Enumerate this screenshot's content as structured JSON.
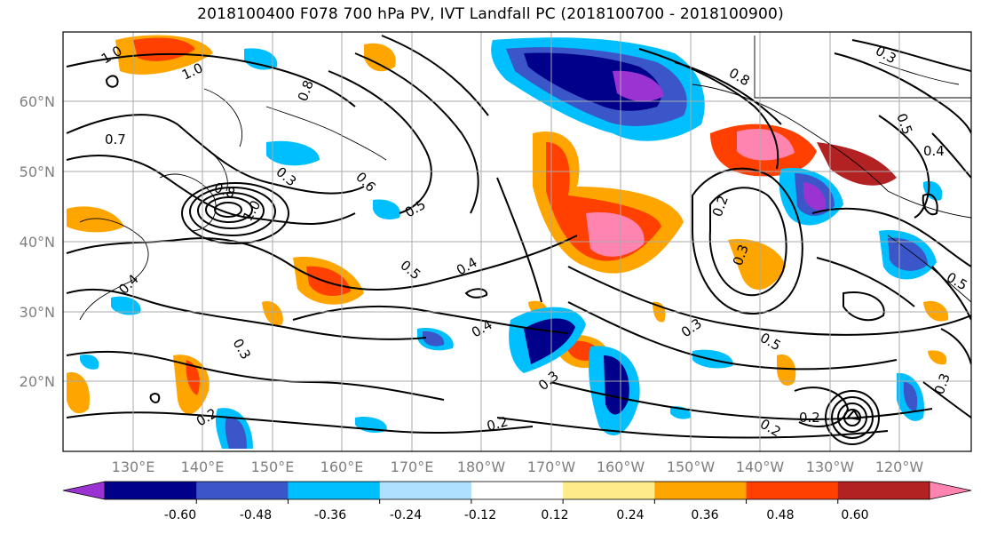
{
  "title": "2018100400 F078 700 hPa PV, IVT Landfall PC (2018100700 - 2018100900)",
  "lat_labels": [
    "60°N",
    "50°N",
    "40°N",
    "30°N",
    "20°N"
  ],
  "lon_labels": [
    "130°E",
    "140°E",
    "150°E",
    "160°E",
    "170°E",
    "180°W",
    "170°W",
    "160°W",
    "150°W",
    "140°W",
    "130°W",
    "120°W"
  ],
  "colorbar": {
    "colors": [
      "#9a33d1",
      "#00008b",
      "#3a56c8",
      "#00bfff",
      "#b0e0ff",
      "#ffffff",
      "#ffeb8a",
      "#ffa500",
      "#ff4000",
      "#b22222",
      "#ff85b0"
    ],
    "tick_labels": [
      "-0.60",
      "-0.48",
      "-0.36",
      "-0.24",
      "-0.12",
      "0.12",
      "0.24",
      "0.36",
      "0.48",
      "0.60"
    ]
  },
  "contour_labels": [
    "1.0",
    "1.0",
    "0.7",
    "0.8",
    "0.3",
    "0.6",
    "0.5",
    "0.4",
    "0.5",
    "0.3",
    "0.4",
    "0.3",
    "0.2",
    "0.2",
    "0.4",
    "0.5",
    "0.3",
    "0.2",
    "0.8",
    "0.4",
    "0.5",
    "0.3",
    "0.2",
    "0.3",
    "0.2",
    "0.3",
    "0.5",
    "0.8",
    "1.0"
  ]
}
